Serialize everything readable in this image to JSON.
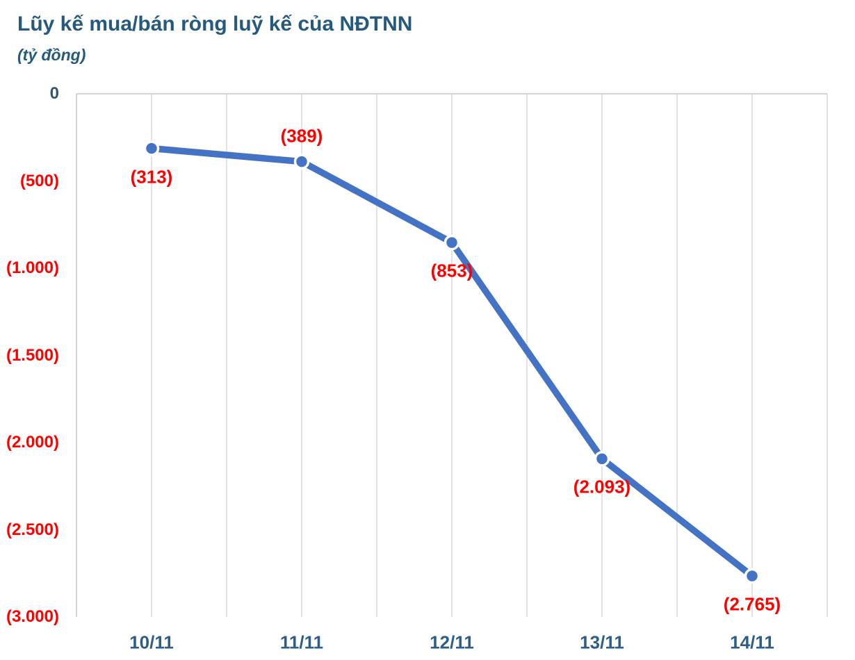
{
  "header": {
    "title": "Lũy kế mua/bán ròng luỹ kế của NĐTNN",
    "subtitle": "(tỷ đồng)"
  },
  "chart_data": {
    "type": "line",
    "title": "Lũy kế mua/bán ròng luỹ kế của NĐTNN",
    "subtitle": "(tỷ đồng)",
    "categories": [
      "10/11",
      "11/11",
      "12/11",
      "13/11",
      "14/11"
    ],
    "series": [
      {
        "name": "Lũy kế mua/bán ròng của NĐTNN",
        "values": [
          -313,
          -389,
          -853,
          -2093,
          -2765
        ]
      }
    ],
    "point_labels": [
      "(313)",
      "(389)",
      "(853)",
      "(2.093)",
      "(2.765)"
    ],
    "label_positions": [
      "below",
      "above",
      "below",
      "below",
      "below"
    ],
    "y_ticks": [
      {
        "label": "0",
        "value": 0,
        "color": "#31566F"
      },
      {
        "label": "(500)",
        "value": -500,
        "color": "#FF0000"
      },
      {
        "label": "(1.000)",
        "value": -1000,
        "color": "#FF0000"
      },
      {
        "label": "(1.500)",
        "value": -1500,
        "color": "#FF0000"
      },
      {
        "label": "(2.000)",
        "value": -2000,
        "color": "#FF0000"
      },
      {
        "label": "(2.500)",
        "value": -2500,
        "color": "#FF0000"
      },
      {
        "label": "(3.000)",
        "value": -3000,
        "color": "#FF0000"
      }
    ],
    "ylim": [
      -3000,
      0
    ],
    "grid": "vertical-only",
    "legend_position": "none",
    "colors": {
      "line": "#4472C4",
      "marker_fill": "#4472C4",
      "marker_ring": "#FFFFFF",
      "data_label": "#FF0000",
      "title": "#255A7E",
      "subtitle": "#255A7E",
      "x_label": "#2E5E87",
      "gridline": "#DADADA",
      "axis_line": "#C6C6C6"
    }
  }
}
